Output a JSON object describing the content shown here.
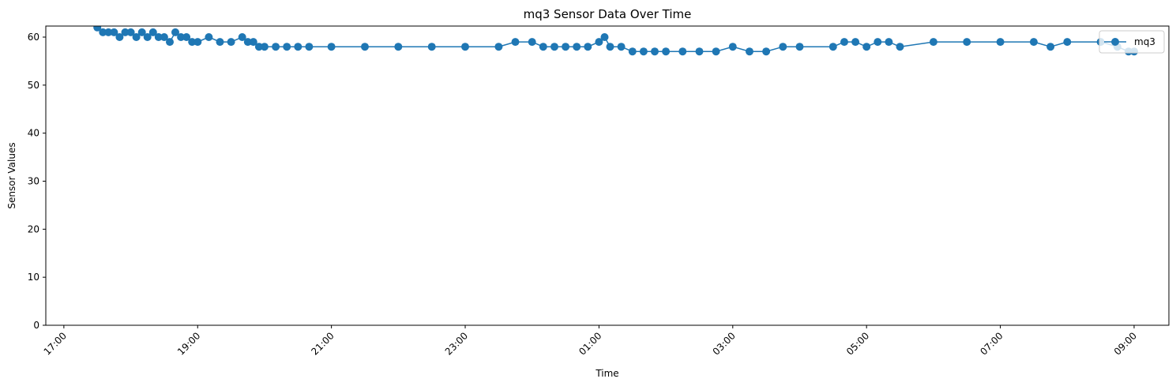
{
  "chart_data": {
    "type": "line",
    "title": "mq3 Sensor Data Over Time",
    "xlabel": "Time",
    "ylabel": "Sensor Values",
    "ylim": [
      0,
      62.3
    ],
    "x_ticks": [
      "17:00",
      "19:00",
      "21:00",
      "23:00",
      "01:00",
      "03:00",
      "05:00",
      "07:00",
      "09:00"
    ],
    "y_ticks": [
      0,
      10,
      20,
      30,
      40,
      50,
      60
    ],
    "grid": false,
    "legend_position": "top-right",
    "series": [
      {
        "name": "mq3",
        "color": "#1f77b4",
        "marker": "circle",
        "points": [
          [
            "17:30",
            62
          ],
          [
            "17:35",
            61
          ],
          [
            "17:40",
            61
          ],
          [
            "17:45",
            61
          ],
          [
            "17:50",
            60
          ],
          [
            "17:55",
            61
          ],
          [
            "18:00",
            61
          ],
          [
            "18:05",
            60
          ],
          [
            "18:10",
            61
          ],
          [
            "18:15",
            60
          ],
          [
            "18:20",
            61
          ],
          [
            "18:25",
            60
          ],
          [
            "18:30",
            60
          ],
          [
            "18:35",
            59
          ],
          [
            "18:40",
            61
          ],
          [
            "18:45",
            60
          ],
          [
            "18:50",
            60
          ],
          [
            "18:55",
            59
          ],
          [
            "19:00",
            59
          ],
          [
            "19:10",
            60
          ],
          [
            "19:20",
            59
          ],
          [
            "19:30",
            59
          ],
          [
            "19:40",
            60
          ],
          [
            "19:45",
            59
          ],
          [
            "19:50",
            59
          ],
          [
            "19:55",
            58
          ],
          [
            "20:00",
            58
          ],
          [
            "20:10",
            58
          ],
          [
            "20:20",
            58
          ],
          [
            "20:30",
            58
          ],
          [
            "20:40",
            58
          ],
          [
            "21:00",
            58
          ],
          [
            "21:30",
            58
          ],
          [
            "22:00",
            58
          ],
          [
            "22:30",
            58
          ],
          [
            "23:00",
            58
          ],
          [
            "23:30",
            58
          ],
          [
            "23:45",
            59
          ],
          [
            "24:00",
            59
          ],
          [
            "24:10",
            58
          ],
          [
            "24:20",
            58
          ],
          [
            "24:30",
            58
          ],
          [
            "24:40",
            58
          ],
          [
            "24:50",
            58
          ],
          [
            "25:00",
            59
          ],
          [
            "25:05",
            60
          ],
          [
            "25:10",
            58
          ],
          [
            "25:20",
            58
          ],
          [
            "25:30",
            57
          ],
          [
            "25:40",
            57
          ],
          [
            "25:50",
            57
          ],
          [
            "26:00",
            57
          ],
          [
            "26:15",
            57
          ],
          [
            "26:30",
            57
          ],
          [
            "26:45",
            57
          ],
          [
            "27:00",
            58
          ],
          [
            "27:15",
            57
          ],
          [
            "27:30",
            57
          ],
          [
            "27:45",
            58
          ],
          [
            "28:00",
            58
          ],
          [
            "28:30",
            58
          ],
          [
            "28:40",
            59
          ],
          [
            "28:50",
            59
          ],
          [
            "29:00",
            58
          ],
          [
            "29:10",
            59
          ],
          [
            "29:20",
            59
          ],
          [
            "29:30",
            58
          ],
          [
            "30:00",
            59
          ],
          [
            "30:30",
            59
          ],
          [
            "31:00",
            59
          ],
          [
            "31:30",
            59
          ],
          [
            "31:45",
            58
          ],
          [
            "32:00",
            59
          ],
          [
            "32:30",
            59
          ],
          [
            "32:45",
            58
          ],
          [
            "32:55",
            57
          ],
          [
            "33:00",
            57
          ]
        ]
      }
    ]
  }
}
